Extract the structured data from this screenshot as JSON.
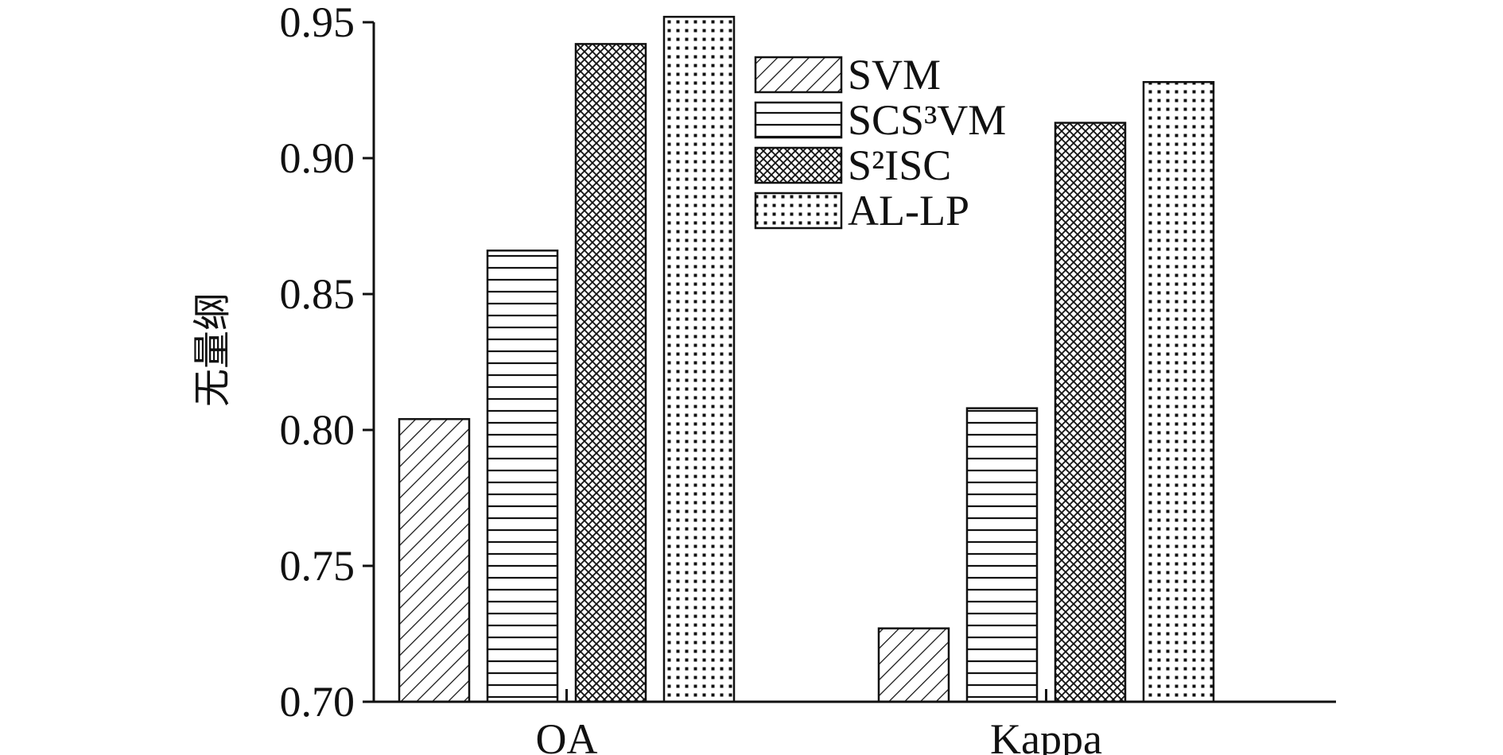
{
  "chart_data": {
    "type": "bar",
    "categories": [
      "OA",
      "Kappa"
    ],
    "series": [
      {
        "name": "SVM",
        "pattern": "diagonal-hatch",
        "values": [
          0.804,
          0.727
        ]
      },
      {
        "name": "SCS³VM",
        "pattern": "horizontal-lines",
        "values": [
          0.866,
          0.808
        ]
      },
      {
        "name": "S²ISC",
        "pattern": "crosshatch",
        "values": [
          0.942,
          0.913
        ]
      },
      {
        "name": "AL-LP",
        "pattern": "dots",
        "values": [
          0.952,
          0.928
        ]
      }
    ],
    "title": "",
    "xlabel": "",
    "ylabel": "无量纲",
    "ylim": [
      0.7,
      0.95
    ],
    "yticks": [
      "0.70",
      "0.75",
      "0.80",
      "0.85",
      "0.90",
      "0.95"
    ],
    "grid": false,
    "legend_position": "top-center",
    "colors": {
      "ink": "#111111",
      "background": "#ffffff"
    }
  }
}
